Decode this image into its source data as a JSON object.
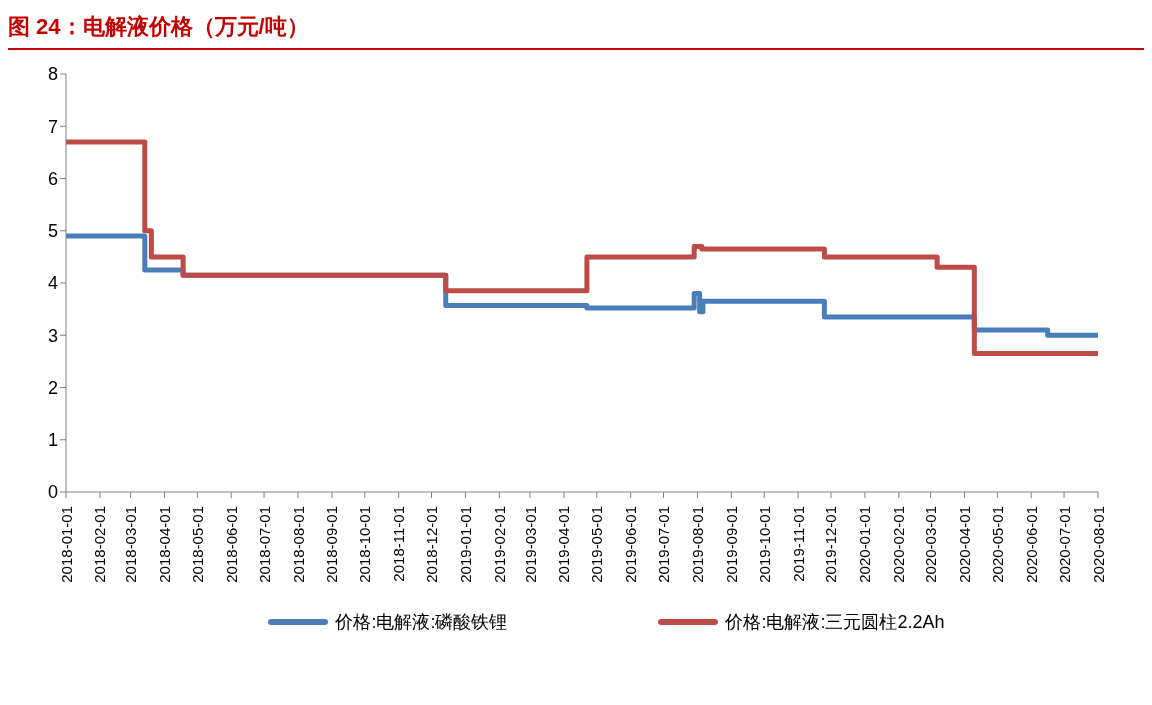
{
  "chart_data": {
    "type": "step",
    "title": "图 24：电解液价格（万元/吨）",
    "legend": "bottom",
    "ylim": [
      0,
      8
    ],
    "yticks": [
      0,
      1,
      2,
      3,
      4,
      5,
      6,
      7,
      8
    ],
    "xlim": [
      "2018-01-01",
      "2020-08-01"
    ],
    "xticks": [
      "2018-01-01",
      "2018-02-01",
      "2018-03-01",
      "2018-04-01",
      "2018-05-01",
      "2018-06-01",
      "2018-07-01",
      "2018-08-01",
      "2018-09-01",
      "2018-10-01",
      "2018-11-01",
      "2018-12-01",
      "2019-01-01",
      "2019-02-01",
      "2019-03-01",
      "2019-04-01",
      "2019-05-01",
      "2019-06-01",
      "2019-07-01",
      "2019-08-01",
      "2019-09-01",
      "2019-10-01",
      "2019-11-01",
      "2019-12-01",
      "2020-01-01",
      "2020-02-01",
      "2020-03-01",
      "2020-04-01",
      "2020-05-01",
      "2020-06-01",
      "2020-07-01",
      "2020-08-01"
    ],
    "series": [
      {
        "name": "价格:电解液:磷酸铁锂",
        "color": "#4a7ebb",
        "x": [
          "2018-01-01",
          "2018-03-14",
          "2018-04-18",
          "2018-12-14",
          "2019-04-22",
          "2019-07-29",
          "2019-08-03",
          "2019-08-06",
          "2019-11-25",
          "2020-04-10",
          "2020-06-16",
          "2020-08-01"
        ],
        "values": [
          4.9,
          4.25,
          4.15,
          3.57,
          3.52,
          3.8,
          3.45,
          3.65,
          3.35,
          3.1,
          3.0,
          3.0
        ]
      },
      {
        "name": "价格:电解液:三元圆柱2.2Ah",
        "color": "#be4b48",
        "x": [
          "2018-01-01",
          "2018-03-14",
          "2018-03-20",
          "2018-04-18",
          "2018-12-14",
          "2019-04-22",
          "2019-07-29",
          "2019-08-05",
          "2019-11-25",
          "2020-03-07",
          "2020-04-10",
          "2020-08-01"
        ],
        "values": [
          6.7,
          5.0,
          4.5,
          4.15,
          3.85,
          4.5,
          4.7,
          4.65,
          4.5,
          4.3,
          2.65,
          2.65
        ]
      }
    ]
  }
}
